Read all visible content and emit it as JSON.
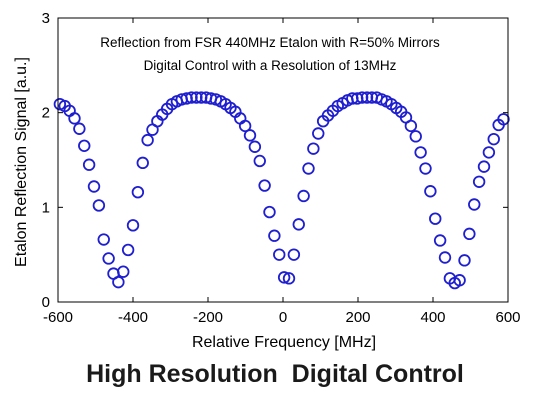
{
  "chart_data": {
    "type": "scatter",
    "title": "Reflection from FSR 440MHz Etalon with  R=50% Mirrors",
    "subtitle": "Digital Control with a Resolution of 13MHz",
    "xlabel": "Relative Frequency [MHz]",
    "ylabel": "Etalon Reflection Signal [a.u.]",
    "xlim": [
      -600,
      600
    ],
    "ylim": [
      0,
      3
    ],
    "xticks": [
      "-600",
      "-400",
      "-200",
      "0",
      "200",
      "400",
      "600"
    ],
    "yticks": [
      "0",
      "1",
      "2",
      "3"
    ],
    "grid": false,
    "marker": "open-circle",
    "color": "#1f1fd0",
    "series": [
      {
        "x": [
          -595,
          -582,
          -569,
          -556,
          -543,
          -530,
          -517,
          -504,
          -491,
          -478,
          -465,
          -452,
          -439,
          -426,
          -413,
          -400,
          -387,
          -374,
          -361,
          -348,
          -335,
          -322,
          -309,
          -296,
          -283,
          -270,
          -257,
          -244,
          -231,
          -218,
          -205,
          -192,
          -179,
          -166,
          -153,
          -140,
          -127,
          -114,
          -101,
          -88,
          -75,
          -62,
          -49,
          -36,
          -23,
          -10,
          3,
          16,
          29,
          42,
          55,
          68,
          81,
          94,
          107,
          120,
          133,
          146,
          159,
          172,
          185,
          198,
          211,
          224,
          237,
          250,
          263,
          276,
          289,
          302,
          315,
          328,
          341,
          354,
          367,
          380,
          393,
          406,
          419,
          432,
          445,
          458,
          471,
          484,
          497,
          510,
          523,
          536,
          549,
          562,
          575,
          588
        ],
        "y": [
          2.09,
          2.07,
          2.02,
          1.94,
          1.83,
          1.65,
          1.45,
          1.22,
          1.02,
          0.66,
          0.46,
          0.3,
          0.21,
          0.32,
          0.55,
          0.81,
          1.16,
          1.47,
          1.71,
          1.82,
          1.91,
          1.98,
          2.04,
          2.09,
          2.12,
          2.14,
          2.15,
          2.16,
          2.16,
          2.16,
          2.16,
          2.15,
          2.14,
          2.12,
          2.09,
          2.05,
          2.01,
          1.94,
          1.86,
          1.76,
          1.64,
          1.49,
          1.23,
          0.95,
          0.7,
          0.5,
          0.26,
          0.25,
          0.5,
          0.82,
          1.12,
          1.41,
          1.62,
          1.78,
          1.91,
          1.97,
          2.02,
          2.07,
          2.1,
          2.13,
          2.15,
          2.15,
          2.16,
          2.16,
          2.16,
          2.16,
          2.14,
          2.12,
          2.09,
          2.05,
          2.01,
          1.95,
          1.86,
          1.75,
          1.58,
          1.41,
          1.17,
          0.88,
          0.65,
          0.47,
          0.25,
          0.2,
          0.23,
          0.44,
          0.72,
          1.03,
          1.27,
          1.43,
          1.58,
          1.72,
          1.87,
          1.93
        ]
      }
    ]
  },
  "caption": "High Resolution  Digital Control"
}
